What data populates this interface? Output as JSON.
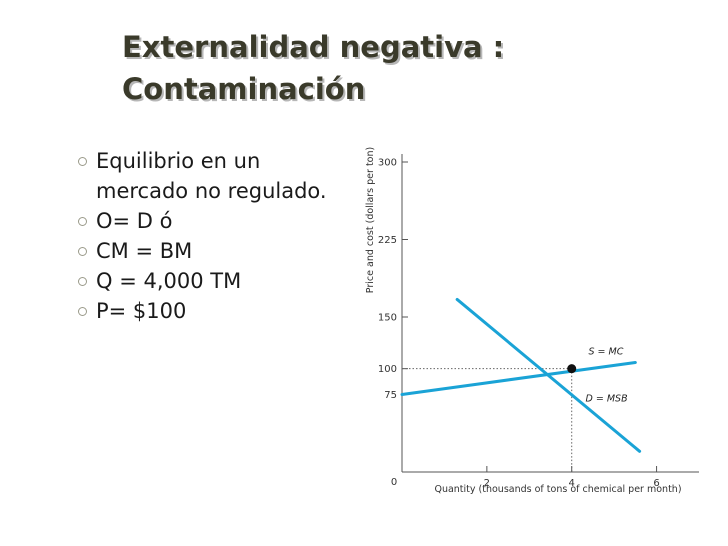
{
  "slide": {
    "title_lines": [
      "Externalidad negativa :",
      "Contaminación"
    ],
    "bullets": [
      "Equilibrio en un mercado no regulado.",
      "O= D   ó",
      "CM = BM",
      "Q = 4,000 TM",
      "P= $100"
    ]
  },
  "chart_data": {
    "type": "line",
    "xlabel": "Quantity (thousands of tons of chemical per month)",
    "ylabel": "Price and cost (dollars per ton)",
    "xlim": [
      0,
      7
    ],
    "ylim": [
      0,
      300
    ],
    "x_ticks": [
      2,
      4,
      6
    ],
    "y_ticks": [
      75,
      100,
      150,
      225,
      300
    ],
    "origin_label": "0",
    "series": [
      {
        "name": "S = MC",
        "color": "#1aa3d6",
        "points": [
          [
            0,
            75
          ],
          [
            5.5,
            106
          ]
        ]
      },
      {
        "name": "D = MSB",
        "color": "#1aa3d6",
        "points": [
          [
            1.3,
            167
          ],
          [
            5.6,
            20
          ]
        ]
      }
    ],
    "equilibrium": {
      "x": 4,
      "y": 100
    }
  }
}
